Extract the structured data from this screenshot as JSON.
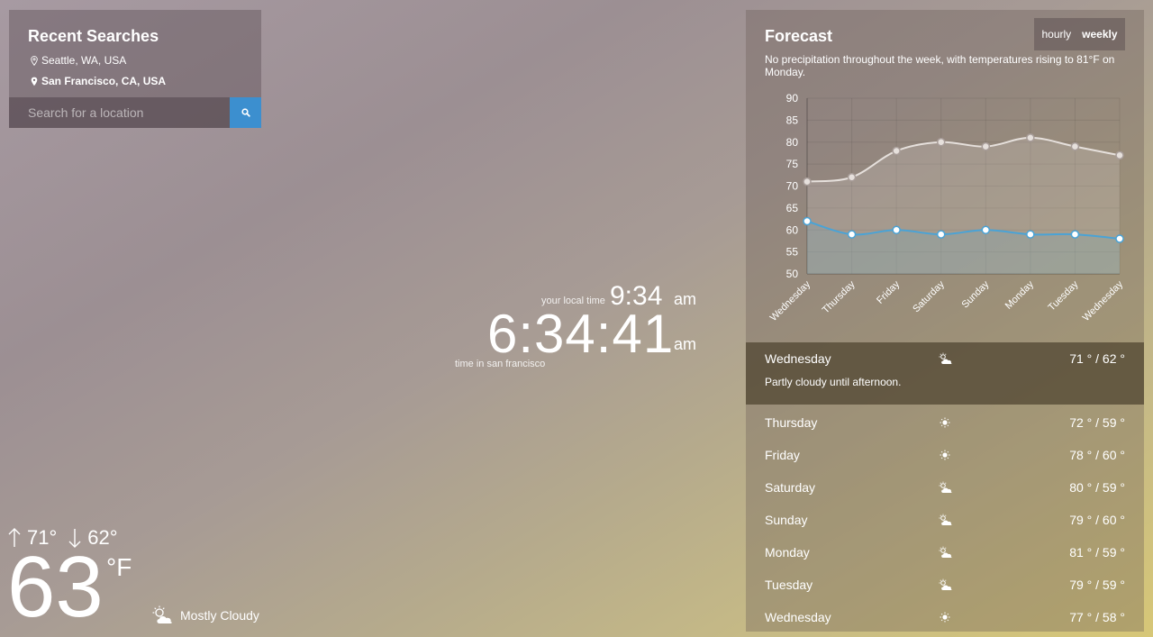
{
  "recent": {
    "title": "Recent Searches",
    "items": [
      {
        "label": "Seattle, WA, USA"
      },
      {
        "label": "San Francisco, CA, USA"
      }
    ],
    "search_placeholder": "Search for a location",
    "search_icon": "search-icon"
  },
  "clock": {
    "local_label": "your local time",
    "local_time": "9:34",
    "local_ampm": "am",
    "main_time": "6:34:41",
    "main_ampm": "am",
    "main_label": "time in san francisco"
  },
  "current": {
    "high": "71°",
    "low": "62°",
    "temp": "63",
    "unit": "°F",
    "condition": "Mostly Cloudy",
    "condition_icon": "partly-cloudy-icon"
  },
  "forecast": {
    "title": "Forecast",
    "toggle": {
      "hourly": "hourly",
      "weekly": "weekly",
      "active": "weekly"
    },
    "summary": "No precipitation throughout the week, with temperatures rising to 81°F on Monday.",
    "days": [
      {
        "day": "Wednesday",
        "icon": "partly-cloudy-icon",
        "temps": "71 ° / 62 °",
        "desc": "Partly cloudy until afternoon.",
        "selected": true
      },
      {
        "day": "Thursday",
        "icon": "sun-icon",
        "temps": "72 ° / 59 °"
      },
      {
        "day": "Friday",
        "icon": "sun-icon",
        "temps": "78 ° / 60 °"
      },
      {
        "day": "Saturday",
        "icon": "partly-cloudy-icon",
        "temps": "80 ° / 59 °"
      },
      {
        "day": "Sunday",
        "icon": "partly-cloudy-icon",
        "temps": "79 ° / 60 °"
      },
      {
        "day": "Monday",
        "icon": "partly-cloudy-icon",
        "temps": "81 ° / 59 °"
      },
      {
        "day": "Tuesday",
        "icon": "partly-cloudy-icon",
        "temps": "79 ° / 59 °"
      },
      {
        "day": "Wednesday",
        "icon": "sun-icon",
        "temps": "77 ° / 58 °"
      }
    ]
  },
  "chart_data": {
    "type": "line",
    "categories": [
      "Wednesday",
      "Thursday",
      "Friday",
      "Saturday",
      "Sunday",
      "Monday",
      "Tuesday",
      "Wednesday"
    ],
    "series": [
      {
        "values": [
          71,
          72,
          78,
          80,
          79,
          81,
          79,
          77
        ],
        "color": "#e6e0dc"
      },
      {
        "values": [
          62,
          59,
          60,
          59,
          60,
          59,
          59,
          58
        ],
        "color": "#4aa3d6"
      }
    ],
    "ylim": [
      50,
      90
    ],
    "yticks": [
      50,
      55,
      60,
      65,
      70,
      75,
      80,
      85,
      90
    ],
    "grid": true,
    "title": "",
    "xlabel": "",
    "ylabel": ""
  }
}
